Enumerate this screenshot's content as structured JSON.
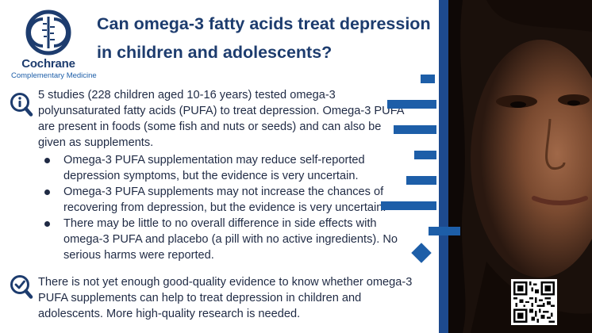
{
  "brand": {
    "name": "Cochrane",
    "subtitle": "Complementary Medicine",
    "color_dark": "#1d3c6e",
    "color_accent": "#1d5ea8"
  },
  "title": "Can omega-3 fatty acids treat depression in children and adolescents?",
  "summary": {
    "icon": "magnifier-info-icon",
    "intro": "5 studies (228 children aged 10-16 years) tested omega-3 polyunsaturated fatty acids (PUFA) to treat depression. Omega-3 PUFA are present in foods (some fish and nuts or seeds) and can also be given as supplements.",
    "findings": [
      "Omega-3 PUFA supplementation may reduce self-reported depression symptoms, but the evidence is very uncertain.",
      "Omega-3 PUFA supplements may not increase the chances of recovering from depression, but the evidence is very uncertain.",
      "There may be little to no overall difference in side effects with omega-3 PUFA and placebo (a pill with no active ingredients). No serious harms were reported."
    ]
  },
  "conclusion": {
    "icon": "magnifier-check-icon",
    "text": "There is not yet enough good-quality evidence to know whether omega-3 PUFA supplements can help to treat depression in children and adolescents. More high-quality research is needed."
  },
  "image": {
    "subject": "portrait-photo",
    "qr": "qr-code-icon"
  }
}
